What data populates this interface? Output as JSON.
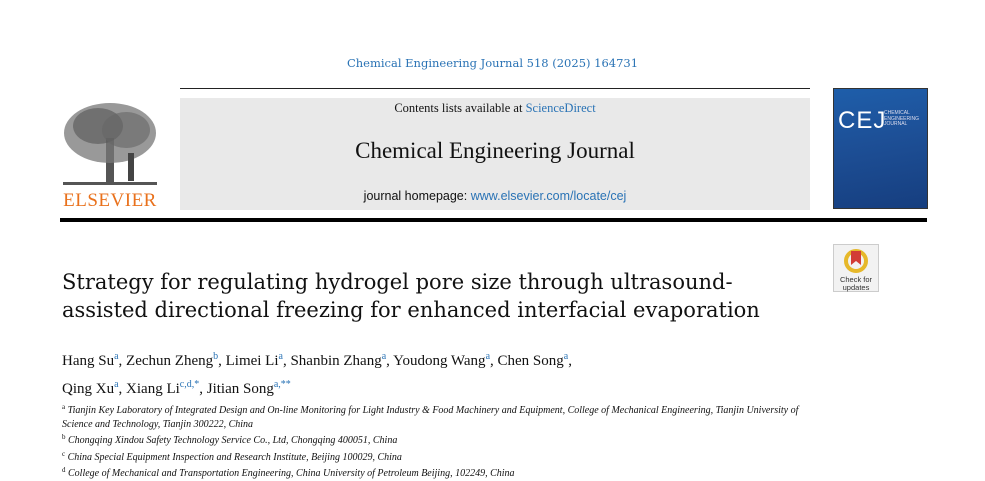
{
  "citation": "Chemical Engineering Journal 518 (2025) 164731",
  "header": {
    "contents_prefix": "Contents lists available at ",
    "contents_link": "ScienceDirect",
    "journal_name": "Chemical Engineering Journal",
    "homepage_prefix": "journal homepage: ",
    "homepage_link": "www.elsevier.com/locate/cej",
    "publisher": "ELSEVIER",
    "cover_abbrev": "CEJ",
    "cover_title": "CHEMICAL ENGINEERING JOURNAL"
  },
  "check_updates": {
    "line1": "Check for",
    "line2": "updates"
  },
  "title": "Strategy for regulating hydrogel pore size through ultrasound-assisted directional freezing for enhanced interfacial evaporation",
  "authors": [
    {
      "name": "Hang Su",
      "sup": "a",
      "sep": ", "
    },
    {
      "name": "Zechun Zheng",
      "sup": "b",
      "sep": ", "
    },
    {
      "name": "Limei Li",
      "sup": "a",
      "sep": ", "
    },
    {
      "name": "Shanbin Zhang",
      "sup": "a",
      "sep": ", "
    },
    {
      "name": "Youdong Wang",
      "sup": "a",
      "sep": ", "
    },
    {
      "name": "Chen Song",
      "sup": "a",
      "sep": ", "
    },
    {
      "name": "Qing Xu",
      "sup": "a",
      "sep": ", "
    },
    {
      "name": "Xiang Li",
      "sup": "c,d,*",
      "sep": ", "
    },
    {
      "name": "Jitian Song",
      "sup": "a,**",
      "sep": ""
    }
  ],
  "affiliations": [
    {
      "sup": "a",
      "text": "Tianjin Key Laboratory of Integrated Design and On-line Monitoring for Light Industry & Food Machinery and Equipment, College of Mechanical Engineering, Tianjin University of Science and Technology, Tianjin 300222, China"
    },
    {
      "sup": "b",
      "text": "Chongqing Xindou Safety Technology Service Co., Ltd, Chongqing 400051, China"
    },
    {
      "sup": "c",
      "text": "China Special Equipment Inspection and Research Institute, Beijing 100029, China"
    },
    {
      "sup": "d",
      "text": "College of Mechanical and Transportation Engineering, China University of Petroleum Beijing, 102249, China"
    }
  ],
  "colors": {
    "link": "#2a73b5",
    "elsevier_orange": "#e9711c",
    "cover_blue": "#1d4f96"
  }
}
